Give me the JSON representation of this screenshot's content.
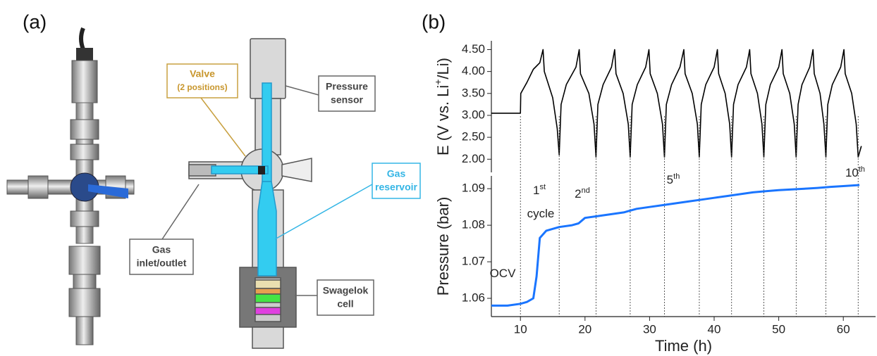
{
  "figure": {
    "panel_labels": [
      "(a)",
      "(b)"
    ],
    "diagram": {
      "valve": [
        "Valve",
        "(2 positions)"
      ],
      "pressure_sensor": [
        "Pressure",
        "sensor"
      ],
      "gas_reservoir": [
        "Gas",
        "reservoir"
      ],
      "gas_inlet": [
        "Gas",
        "inlet/outlet"
      ],
      "swagelok_cell": [
        "Swagelok",
        "cell"
      ]
    }
  },
  "chart_data": [
    {
      "type": "line",
      "ylabel": [
        "E (V vs. Li",
        "+",
        "/Li)"
      ],
      "xlim": [
        5.5,
        65
      ],
      "ylim": [
        1.7,
        4.7
      ],
      "yticks": [
        {
          "value": 2,
          "label": "2.00"
        },
        {
          "value": 2.5,
          "label": "2.50"
        },
        {
          "value": 3,
          "label": "3.00"
        },
        {
          "value": 3.5,
          "label": "3.50"
        },
        {
          "value": 4,
          "label": "4.00"
        },
        {
          "value": 4.5,
          "label": "4.50"
        }
      ],
      "series": [
        {
          "color": "#000000",
          "x": [
            5.5,
            10,
            10.05,
            11,
            12,
            13,
            13.5,
            13.7,
            15,
            15.7,
            16,
            16.3,
            17.1,
            18.6,
            19.1,
            19.3,
            20.6,
            21.4,
            21.7,
            22.0,
            22.8,
            24.1,
            24.6,
            24.8,
            25.9,
            26.7,
            27,
            27.3,
            28.1,
            29.4,
            29.9,
            30.1,
            31.2,
            32.0,
            32.3,
            32.6,
            33.4,
            34.7,
            35.3,
            35.5,
            36.6,
            37.4,
            37.7,
            38.0,
            38.7,
            40.0,
            40.5,
            40.7,
            41.7,
            42.4,
            42.7,
            43.0,
            43.7,
            45.0,
            45.5,
            45.7,
            46.7,
            47.4,
            47.7,
            48.0,
            48.7,
            50.0,
            50.5,
            50.7,
            51.7,
            52.4,
            52.7,
            53.0,
            53.6,
            54.8,
            55.3,
            55.5,
            56.4,
            57.0,
            57.3,
            57.6,
            58.3,
            59.6,
            60.1,
            60.3,
            61.3,
            62.0,
            62.3,
            62.8
          ],
          "values": [
            3.05,
            3.05,
            3.5,
            3.75,
            4.05,
            4.2,
            4.5,
            4.0,
            3.4,
            2.7,
            2.1,
            3.25,
            3.7,
            4.1,
            4.5,
            3.95,
            3.5,
            2.8,
            2.05,
            3.25,
            3.7,
            4.1,
            4.5,
            3.95,
            3.5,
            2.8,
            2.05,
            3.25,
            3.7,
            4.1,
            4.5,
            3.95,
            3.5,
            2.8,
            2.05,
            3.25,
            3.7,
            4.1,
            4.5,
            3.95,
            3.5,
            2.8,
            2.05,
            3.25,
            3.7,
            4.1,
            4.5,
            3.95,
            3.5,
            2.8,
            2.05,
            3.25,
            3.7,
            4.1,
            4.5,
            3.95,
            3.5,
            2.8,
            2.05,
            3.25,
            3.7,
            4.1,
            4.5,
            3.95,
            3.5,
            2.8,
            2.05,
            3.25,
            3.7,
            4.1,
            4.5,
            3.95,
            3.5,
            2.8,
            2.05,
            3.25,
            3.7,
            4.1,
            4.5,
            3.95,
            3.5,
            2.8,
            2.05,
            2.3
          ]
        }
      ]
    },
    {
      "type": "line",
      "xlabel": "Time (h)",
      "ylabel": "Pressure (bar)",
      "xlim": [
        5.5,
        65
      ],
      "ylim": [
        1.055,
        1.0935
      ],
      "xticks": [
        10,
        20,
        30,
        40,
        50,
        60
      ],
      "yticks": [
        1.06,
        1.07,
        1.08,
        1.09
      ],
      "cycle_ends": [
        10,
        16,
        21.7,
        27,
        32.3,
        37.7,
        42.7,
        47.7,
        52.7,
        57.3,
        62.3
      ],
      "annotations": [
        {
          "text": "OCV"
        },
        {
          "text": "1",
          "sup": "st"
        },
        {
          "text": "cycle"
        },
        {
          "text": "2",
          "sup": "nd"
        },
        {
          "text": "5",
          "sup": "th"
        },
        {
          "text": "10",
          "sup": "th"
        }
      ],
      "series": [
        {
          "color": "#1a75ff",
          "x": [
            5.5,
            8,
            10,
            11,
            12,
            12.5,
            13,
            14,
            16,
            18,
            19,
            20,
            22,
            24,
            26,
            28,
            30,
            32,
            34,
            36,
            38,
            40,
            42,
            44,
            46,
            48,
            50,
            52,
            54,
            56,
            58,
            60,
            62.5
          ],
          "values": [
            1.058,
            1.058,
            1.0585,
            1.059,
            1.06,
            1.066,
            1.0765,
            1.0785,
            1.0795,
            1.08,
            1.0805,
            1.082,
            1.0825,
            1.083,
            1.0835,
            1.0845,
            1.085,
            1.0855,
            1.086,
            1.0865,
            1.087,
            1.0875,
            1.088,
            1.0885,
            1.089,
            1.0893,
            1.0896,
            1.0898,
            1.09,
            1.0902,
            1.0905,
            1.0907,
            1.091
          ]
        }
      ]
    }
  ]
}
